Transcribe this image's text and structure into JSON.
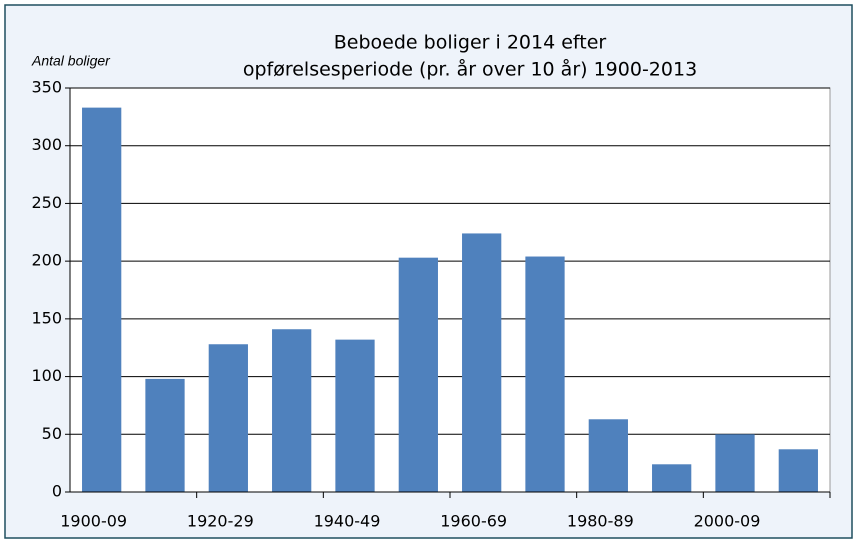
{
  "chart_data": {
    "type": "bar",
    "title": [
      "Beboede boliger i 2014 efter",
      "opførelsesperiode (pr. år over 10 år) 1900-2013"
    ],
    "y_label": "Antal boliger",
    "categories": [
      "1900-09",
      null,
      "1920-29",
      null,
      "1940-49",
      null,
      "1960-69",
      null,
      "1980-89",
      null,
      "2000-09",
      null
    ],
    "values": [
      333,
      98,
      128,
      141,
      132,
      203,
      224,
      204,
      63,
      24,
      50,
      37
    ],
    "color": "#4f81bd",
    "ylim": [
      0,
      350
    ],
    "yticks": [
      0,
      50,
      100,
      150,
      200,
      250,
      300,
      350
    ],
    "grid": true
  }
}
